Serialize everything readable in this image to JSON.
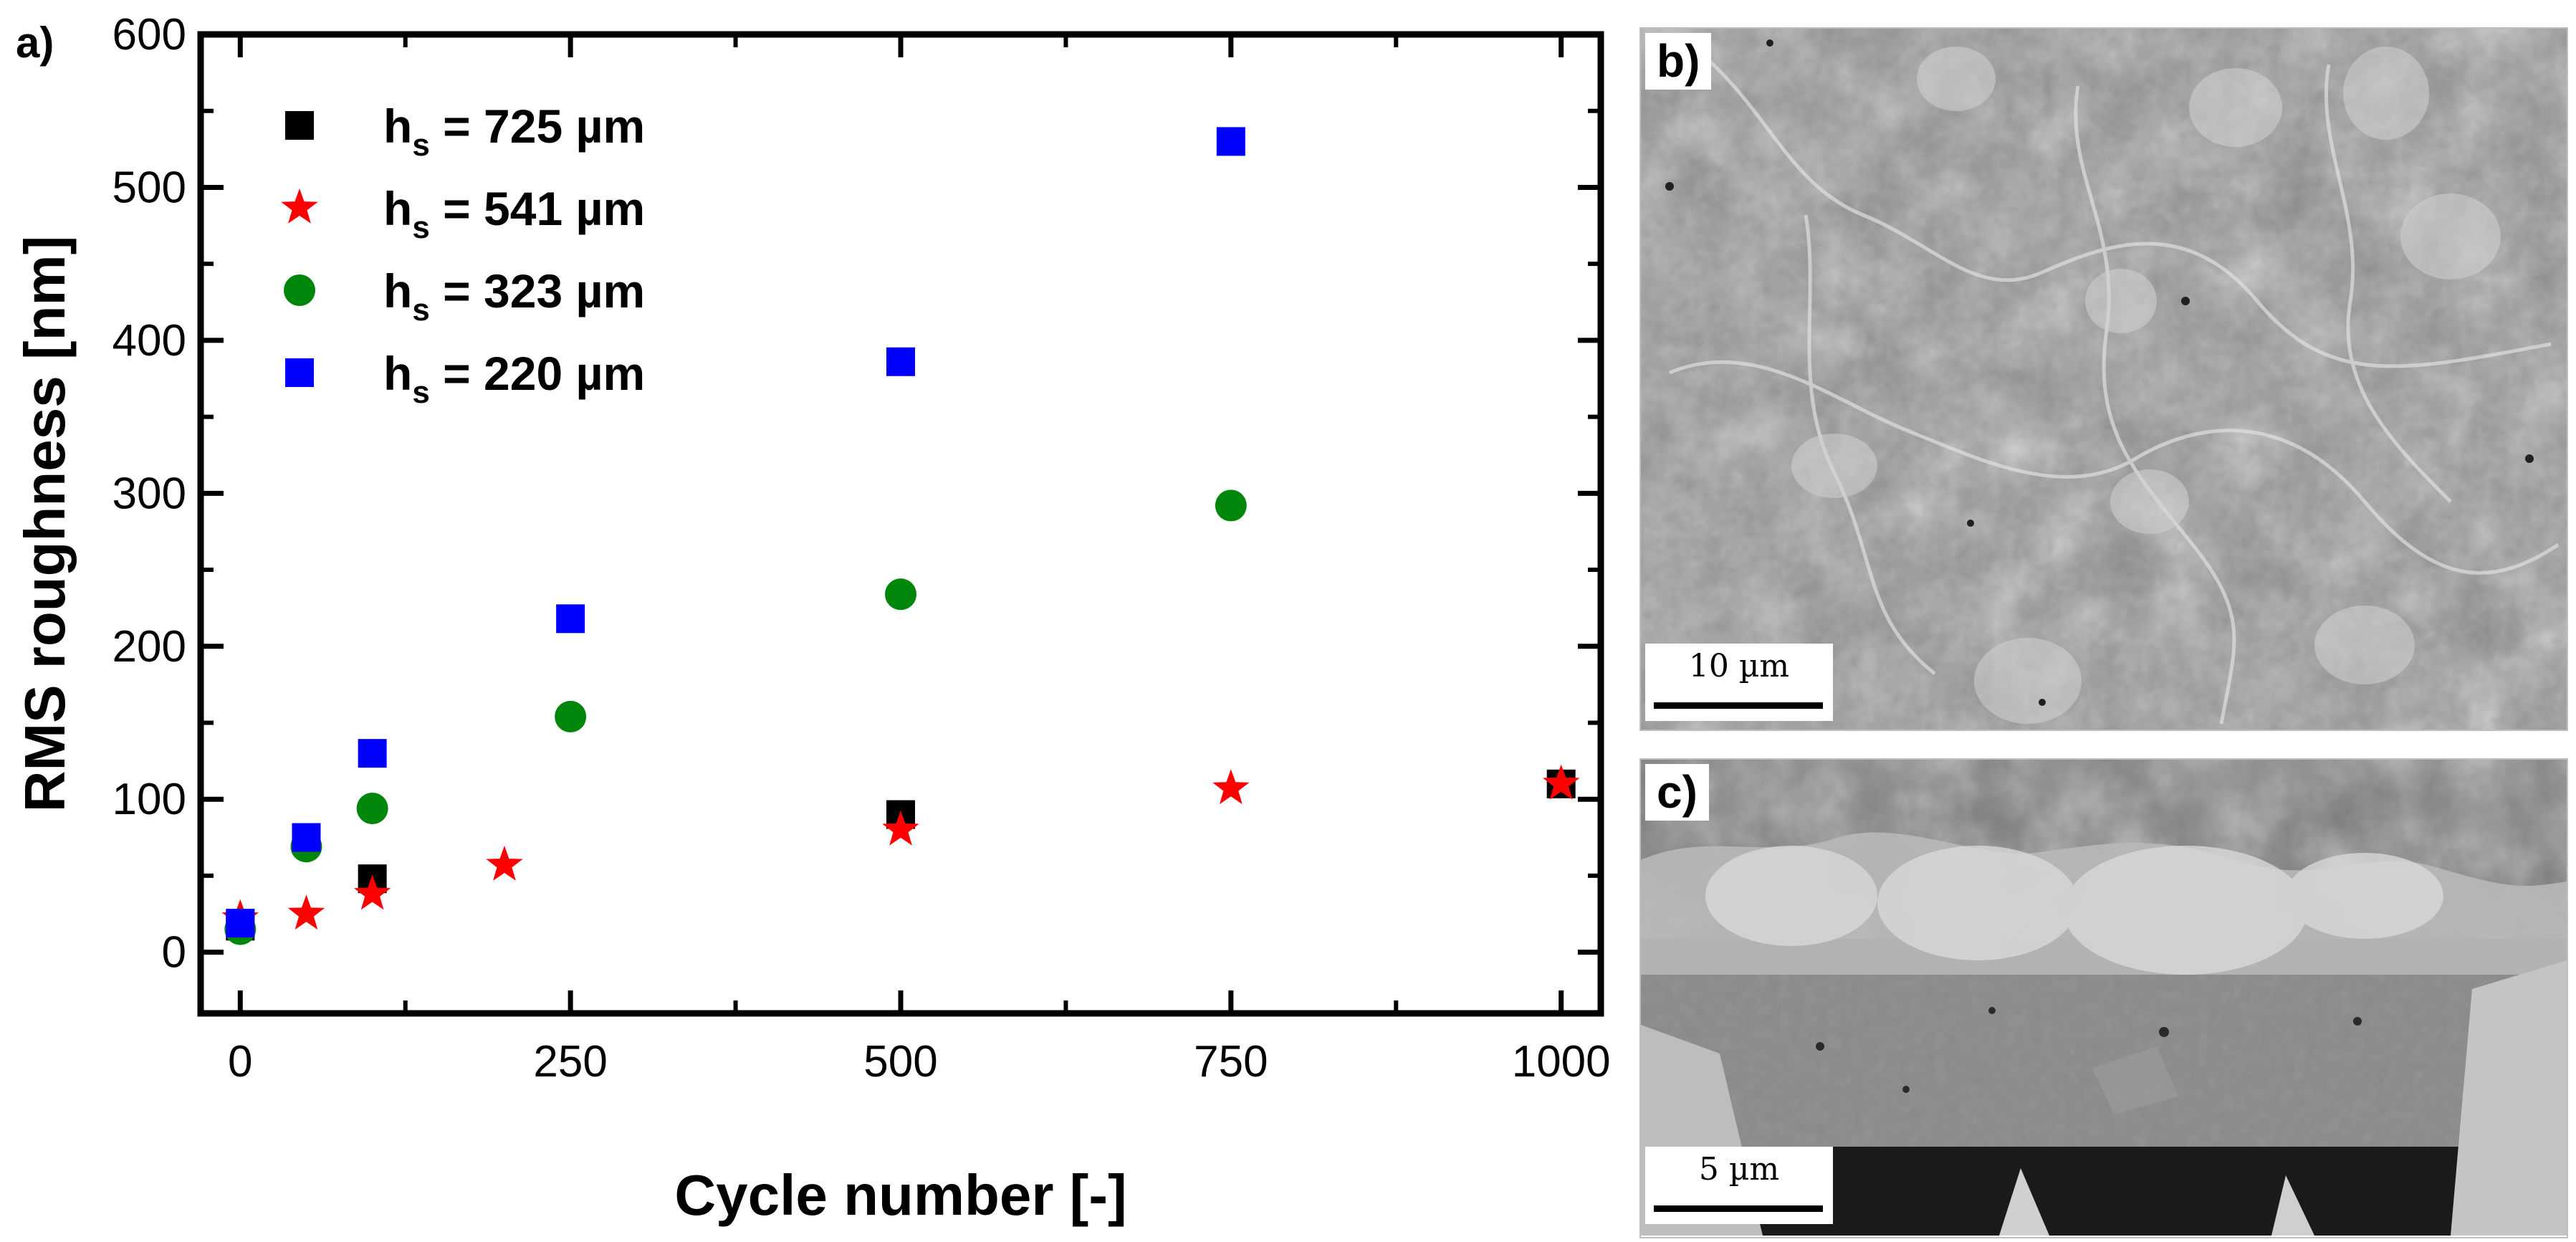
{
  "chart_data": {
    "type": "scatter",
    "panel_label": "a)",
    "xlabel": "Cycle number [-]",
    "ylabel": "RMS roughness [nm]",
    "xlim": [
      -30,
      1030
    ],
    "ylim": [
      -40,
      600
    ],
    "xticks": [
      0,
      250,
      500,
      750,
      1000
    ],
    "yticks": [
      0,
      100,
      200,
      300,
      400,
      500,
      600
    ],
    "legend_position": "top-left",
    "series": [
      {
        "name": "725 µm",
        "marker": "square",
        "color": "#000000",
        "x": [
          0,
          100,
          500,
          1000
        ],
        "y": [
          17,
          48,
          90,
          110
        ]
      },
      {
        "name": "541 µm",
        "marker": "star",
        "color": "#ff0000",
        "x": [
          0,
          50,
          100,
          200,
          500,
          750,
          1000
        ],
        "y": [
          22,
          25,
          38,
          57,
          80,
          107,
          110
        ]
      },
      {
        "name": "323 µm",
        "marker": "circle",
        "color": "#00860a",
        "x": [
          0,
          50,
          100,
          250,
          500,
          750
        ],
        "y": [
          15,
          69,
          94,
          154,
          234,
          292
        ]
      },
      {
        "name": "220 µm",
        "marker": "square",
        "color": "#0000ff",
        "x": [
          0,
          50,
          100,
          250,
          500,
          750
        ],
        "y": [
          19,
          75,
          130,
          218,
          386,
          530
        ]
      }
    ],
    "legend_prefix": "h",
    "legend_subscript": "s",
    "legend_equals": " = "
  },
  "micrographs": {
    "b": {
      "label": "b)",
      "scale_text": "10 µm"
    },
    "c": {
      "label": "c)",
      "scale_text": "5 µm"
    }
  },
  "colors": {
    "axis": "#000000",
    "panel_border": "#bfbfbf"
  }
}
